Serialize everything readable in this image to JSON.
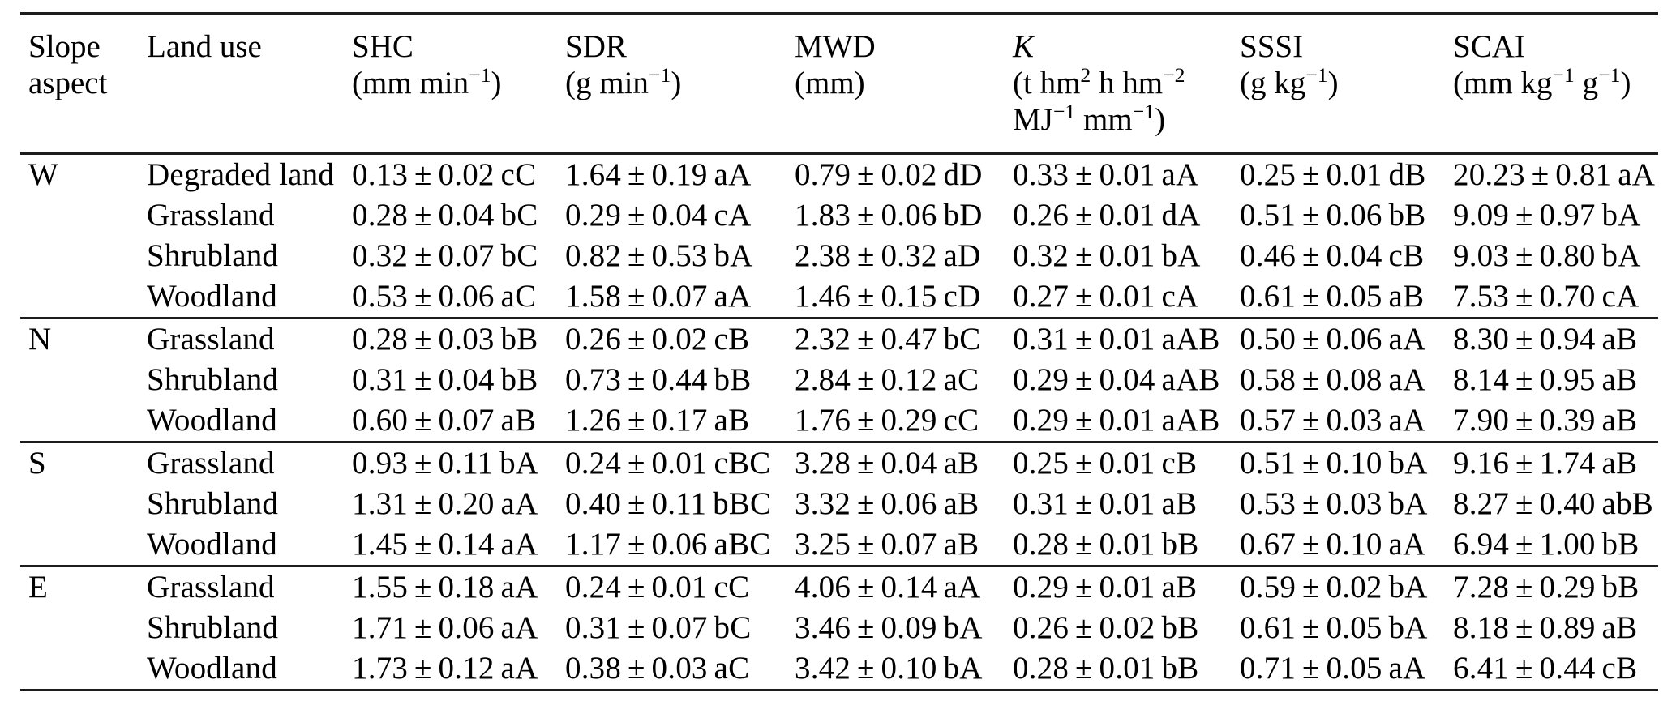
{
  "colors": {
    "background": "#ffffff",
    "text": "#000000",
    "rule": "#1c1c1c"
  },
  "table": {
    "columns": [
      {
        "id": "slope-aspect",
        "italic": false,
        "lines": [
          "Slope",
          "aspect"
        ]
      },
      {
        "id": "land-use",
        "italic": false,
        "lines": [
          "Land use"
        ]
      },
      {
        "id": "shc",
        "italic": false,
        "lines": [
          "SHC",
          "(mm min^{−1})"
        ]
      },
      {
        "id": "sdr",
        "italic": false,
        "lines": [
          "SDR",
          "(g min^{−1})"
        ]
      },
      {
        "id": "mwd",
        "italic": false,
        "lines": [
          "MWD",
          "(mm)"
        ]
      },
      {
        "id": "k",
        "italic": true,
        "lines": [
          "K",
          "(t hm^{2} h hm^{−2}",
          "MJ^{−1} mm^{−1})"
        ]
      },
      {
        "id": "sssi",
        "italic": false,
        "lines": [
          "SSSI",
          "(g kg^{−1})"
        ]
      },
      {
        "id": "scai",
        "italic": false,
        "lines": [
          "SCAI",
          "(mm kg^{−1} g^{−1})"
        ]
      }
    ],
    "groups": [
      {
        "aspect": "W",
        "rows": [
          {
            "land_use": "Degraded land",
            "values": [
              "0.13 ± 0.02 cC",
              "1.64 ± 0.19 aA",
              "0.79 ± 0.02 dD",
              "0.33 ± 0.01 aA",
              "0.25 ± 0.01 dB",
              "20.23 ± 0.81 aA"
            ]
          },
          {
            "land_use": "Grassland",
            "values": [
              "0.28 ± 0.04 bC",
              "0.29 ± 0.04 cA",
              "1.83 ± 0.06 bD",
              "0.26 ± 0.01 dA",
              "0.51 ± 0.06 bB",
              "9.09 ± 0.97 bA"
            ]
          },
          {
            "land_use": "Shrubland",
            "values": [
              "0.32 ± 0.07 bC",
              "0.82 ± 0.53 bA",
              "2.38 ± 0.32 aD",
              "0.32 ± 0.01 bA",
              "0.46 ± 0.04 cB",
              "9.03 ± 0.80 bA"
            ]
          },
          {
            "land_use": "Woodland",
            "values": [
              "0.53 ± 0.06 aC",
              "1.58 ± 0.07 aA",
              "1.46 ± 0.15 cD",
              "0.27 ± 0.01 cA",
              "0.61 ± 0.05 aB",
              "7.53 ± 0.70 cA"
            ]
          }
        ]
      },
      {
        "aspect": "N",
        "rows": [
          {
            "land_use": "Grassland",
            "values": [
              "0.28 ± 0.03 bB",
              "0.26 ± 0.02 cB",
              "2.32 ± 0.47 bC",
              "0.31 ± 0.01 aAB",
              "0.50 ± 0.06 aA",
              "8.30 ± 0.94 aB"
            ]
          },
          {
            "land_use": "Shrubland",
            "values": [
              "0.31 ± 0.04 bB",
              "0.73 ± 0.44 bB",
              "2.84 ± 0.12 aC",
              "0.29 ± 0.04 aAB",
              "0.58 ± 0.08 aA",
              "8.14 ± 0.95 aB"
            ]
          },
          {
            "land_use": "Woodland",
            "values": [
              "0.60 ± 0.07 aB",
              "1.26 ± 0.17 aB",
              "1.76 ± 0.29 cC",
              "0.29 ± 0.01 aAB",
              "0.57 ± 0.03 aA",
              "7.90 ± 0.39 aB"
            ]
          }
        ]
      },
      {
        "aspect": "S",
        "rows": [
          {
            "land_use": "Grassland",
            "values": [
              "0.93 ± 0.11 bA",
              "0.24 ± 0.01 cBC",
              "3.28 ± 0.04 aB",
              "0.25 ± 0.01 cB",
              "0.51 ± 0.10 bA",
              "9.16 ± 1.74 aB"
            ]
          },
          {
            "land_use": "Shrubland",
            "values": [
              "1.31 ± 0.20 aA",
              "0.40 ± 0.11 bBC",
              "3.32 ± 0.06 aB",
              "0.31 ± 0.01 aB",
              "0.53 ± 0.03 bA",
              "8.27 ± 0.40 abB"
            ]
          },
          {
            "land_use": "Woodland",
            "values": [
              "1.45 ± 0.14 aA",
              "1.17 ± 0.06 aBC",
              "3.25 ± 0.07 aB",
              "0.28 ± 0.01 bB",
              "0.67 ± 0.10 aA",
              "6.94 ± 1.00 bB"
            ]
          }
        ]
      },
      {
        "aspect": "E",
        "rows": [
          {
            "land_use": "Grassland",
            "values": [
              "1.55 ± 0.18 aA",
              "0.24 ± 0.01 cC",
              "4.06 ± 0.14 aA",
              "0.29 ± 0.01 aB",
              "0.59 ± 0.02 bA",
              "7.28 ± 0.29 bB"
            ]
          },
          {
            "land_use": "Shrubland",
            "values": [
              "1.71 ± 0.06 aA",
              "0.31 ± 0.07 bC",
              "3.46 ± 0.09 bA",
              "0.26 ± 0.02 bB",
              "0.61 ± 0.05 bA",
              "8.18 ± 0.89 aB"
            ]
          },
          {
            "land_use": "Woodland",
            "values": [
              "1.73 ± 0.12 aA",
              "0.38 ± 0.03 aC",
              "3.42 ± 0.10 bA",
              "0.28 ± 0.01 bB",
              "0.71 ± 0.05 aA",
              "6.41 ± 0.44 cB"
            ]
          }
        ]
      }
    ]
  }
}
